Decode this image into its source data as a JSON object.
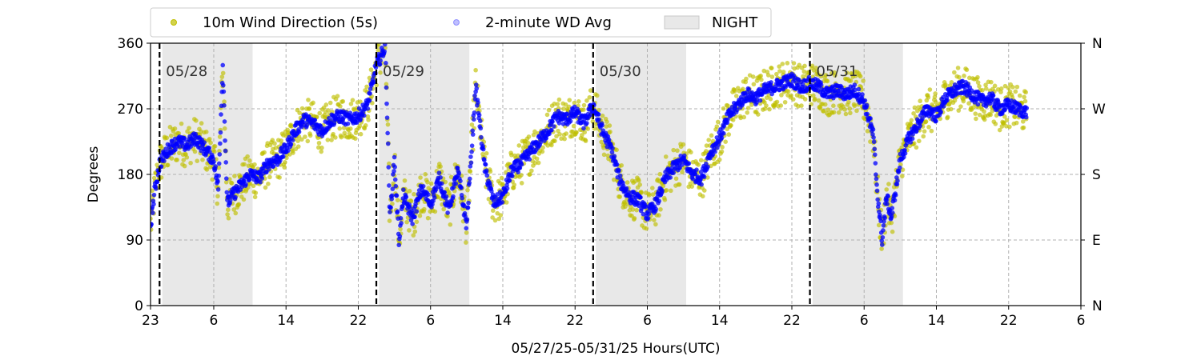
{
  "chart_data": {
    "type": "scatter",
    "ylabel": "Degrees",
    "xlabel": "05/27/25-05/31/25  Hours(UTC)",
    "ylim": [
      0,
      360
    ],
    "xlim_hours": [
      23,
      126
    ],
    "x_tick_labels": [
      "23",
      "6",
      "14",
      "22",
      "6",
      "14",
      "22",
      "6",
      "14",
      "22",
      "6",
      "14",
      "22",
      "6"
    ],
    "x_tick_hours": [
      23,
      30,
      38,
      46,
      54,
      62,
      70,
      78,
      86,
      94,
      102,
      110,
      118,
      126
    ],
    "y_ticks": [
      0,
      90,
      180,
      270,
      360
    ],
    "y_tick_labels": [
      "0",
      "90",
      "180",
      "270",
      "360"
    ],
    "y2_tick_labels": [
      "N",
      "E",
      "S",
      "W",
      "N"
    ],
    "grid": true,
    "legend_position": "top",
    "legend": [
      "10m Wind Direction (5s)",
      "2-minute WD Avg",
      "NIGHT"
    ],
    "day_boundaries": [
      {
        "hour": 24,
        "label": "05/28"
      },
      {
        "hour": 48,
        "label": "05/29"
      },
      {
        "hour": 72,
        "label": "05/30"
      },
      {
        "hour": 96,
        "label": "05/31"
      }
    ],
    "night_periods": [
      [
        24.3,
        34.3
      ],
      [
        48.3,
        58.3
      ],
      [
        72.3,
        82.3
      ],
      [
        96.3,
        106.3
      ]
    ],
    "colors": {
      "raw": "#bfbf00",
      "avg": "#0000ff",
      "night": "#d9d9d9",
      "daybreak": "#000000"
    },
    "series": [
      {
        "name": "2-minute WD Avg",
        "hours": [
          23,
          23.5,
          24,
          25,
          26,
          27,
          28,
          29,
          30,
          30.5,
          31,
          31.5,
          32,
          33,
          34,
          35,
          36,
          37,
          38,
          39,
          40,
          41,
          42,
          43,
          44,
          45,
          46,
          47,
          47.5,
          48,
          49,
          49.5,
          50,
          50.5,
          51,
          52,
          53,
          54,
          55,
          56,
          57,
          58,
          59,
          60,
          61,
          62,
          63,
          64,
          65,
          66,
          67,
          68,
          69,
          70,
          71,
          72,
          73,
          74,
          75,
          76,
          77,
          78,
          79,
          80,
          81,
          82,
          83,
          84,
          85,
          86,
          87,
          88,
          89,
          90,
          91,
          92,
          93,
          94,
          95,
          96,
          97,
          98,
          99,
          100,
          101,
          102,
          103,
          103.5,
          104,
          104.5,
          105,
          106,
          107,
          108,
          109,
          110,
          111,
          112,
          113,
          114,
          115,
          116,
          117,
          118,
          119,
          120
        ],
        "values": [
          110,
          160,
          195,
          215,
          225,
          220,
          230,
          215,
          200,
          160,
          330,
          140,
          150,
          165,
          180,
          175,
          195,
          200,
          215,
          240,
          255,
          250,
          240,
          255,
          260,
          255,
          260,
          275,
          300,
          330,
          355,
          120,
          200,
          90,
          150,
          120,
          160,
          140,
          175,
          130,
          185,
          110,
          300,
          190,
          140,
          150,
          185,
          195,
          210,
          225,
          240,
          260,
          255,
          265,
          250,
          275,
          240,
          215,
          170,
          150,
          145,
          125,
          140,
          175,
          190,
          200,
          180,
          175,
          210,
          230,
          260,
          275,
          290,
          285,
          295,
          300,
          305,
          310,
          300,
          305,
          300,
          290,
          295,
          290,
          295,
          280,
          235,
          150,
          90,
          150,
          120,
          200,
          230,
          250,
          270,
          260,
          285,
          295,
          300,
          290,
          280,
          285,
          270,
          275,
          270,
          265
        ]
      },
      {
        "name": "10m Wind Direction (5s)",
        "spread_degrees": 30,
        "values_follow": "2-minute WD Avg"
      }
    ]
  }
}
